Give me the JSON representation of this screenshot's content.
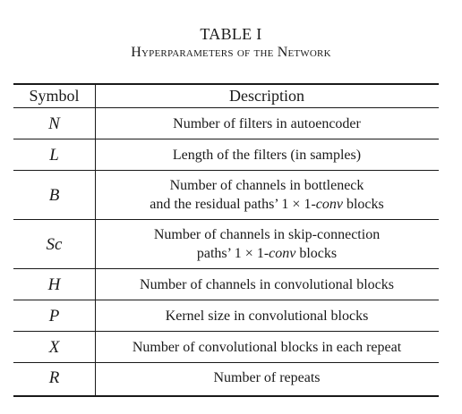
{
  "caption": {
    "number": "TABLE I",
    "title": "Hyperparameters of the Network"
  },
  "table": {
    "headers": {
      "symbol": "Symbol",
      "description": "Description"
    },
    "rows": [
      {
        "symbol": "N",
        "lines": [
          [
            "Number of filters in autoencoder"
          ]
        ]
      },
      {
        "symbol": "L",
        "lines": [
          [
            "Length of the filters (in samples)"
          ]
        ]
      },
      {
        "symbol": "B",
        "lines": [
          [
            "Number of channels in bottleneck"
          ],
          [
            "and the residual paths’ 1 × 1-",
            "conv",
            " blocks"
          ]
        ]
      },
      {
        "symbol": "Sc",
        "lines": [
          [
            "Number of channels in skip-connection"
          ],
          [
            "paths’ 1 × 1-",
            "conv",
            " blocks"
          ]
        ]
      },
      {
        "symbol": "H",
        "lines": [
          [
            "Number of channels in convolutional blocks"
          ]
        ]
      },
      {
        "symbol": "P",
        "lines": [
          [
            "Kernel size in convolutional blocks"
          ]
        ]
      },
      {
        "symbol": "X",
        "lines": [
          [
            "Number of convolutional blocks in each repeat"
          ]
        ]
      },
      {
        "symbol": "R",
        "lines": [
          [
            "Number of repeats"
          ]
        ]
      }
    ]
  }
}
